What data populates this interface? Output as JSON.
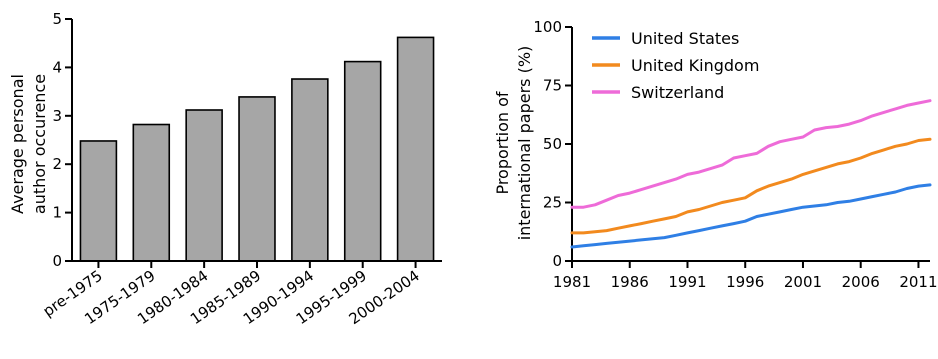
{
  "chart_data": [
    {
      "type": "bar",
      "title": "",
      "xlabel": "",
      "ylabel": [
        "Average personal",
        "author occurence"
      ],
      "categories": [
        "pre-1975",
        "1975-1979",
        "1980-1984",
        "1985-1989",
        "1990-1994",
        "1995-1999",
        "2000-2004"
      ],
      "values": [
        2.48,
        2.82,
        3.12,
        3.39,
        3.76,
        4.12,
        4.62
      ],
      "ylim": [
        0,
        5
      ],
      "yticks": [
        "0",
        "1",
        "2",
        "3",
        "4",
        "5"
      ],
      "bar_color": "#a6a6a6",
      "grid": false
    },
    {
      "type": "line",
      "title": "",
      "xlabel": "",
      "ylabel": [
        "Proportion of",
        "international papers (%)"
      ],
      "x": [
        1981,
        1982,
        1983,
        1984,
        1985,
        1986,
        1987,
        1988,
        1989,
        1990,
        1991,
        1992,
        1993,
        1994,
        1995,
        1996,
        1997,
        1998,
        1999,
        2000,
        2001,
        2002,
        2003,
        2004,
        2005,
        2006,
        2007,
        2008,
        2009,
        2010,
        2011,
        2012
      ],
      "xlim": [
        1981,
        2012
      ],
      "ylim": [
        0,
        100
      ],
      "xticks": [
        "1981",
        "1986",
        "1991",
        "1996",
        "2001",
        "2006",
        "2011"
      ],
      "yticks": [
        "0",
        "25",
        "50",
        "75",
        "100"
      ],
      "legend_position": "top-left",
      "grid": false,
      "series": [
        {
          "name": "United States",
          "color": "#2f7fe5",
          "values": [
            6,
            6.5,
            7,
            7.5,
            8,
            8.5,
            9,
            9.5,
            10,
            11,
            12,
            13,
            14,
            15,
            16,
            17,
            19,
            20,
            21,
            22,
            23,
            23.5,
            24,
            25,
            25.5,
            26.5,
            27.5,
            28.5,
            29.5,
            31,
            32,
            32.5
          ]
        },
        {
          "name": "United Kingdom",
          "color": "#f28a1e",
          "values": [
            12,
            12,
            12.5,
            13,
            14,
            15,
            16,
            17,
            18,
            19,
            21,
            22,
            23.5,
            25,
            26,
            27,
            30,
            32,
            33.5,
            35,
            37,
            38.5,
            40,
            41.5,
            42.5,
            44,
            46,
            47.5,
            49,
            50,
            51.5,
            52
          ]
        },
        {
          "name": "Switzerland",
          "color": "#ee6bd8",
          "values": [
            23,
            23,
            24,
            26,
            28,
            29,
            30.5,
            32,
            33.5,
            35,
            37,
            38,
            39.5,
            41,
            44,
            45,
            46,
            49,
            51,
            52,
            53,
            56,
            57,
            57.5,
            58.5,
            60,
            62,
            63.5,
            65,
            66.5,
            67.5,
            68.5
          ]
        }
      ]
    }
  ]
}
